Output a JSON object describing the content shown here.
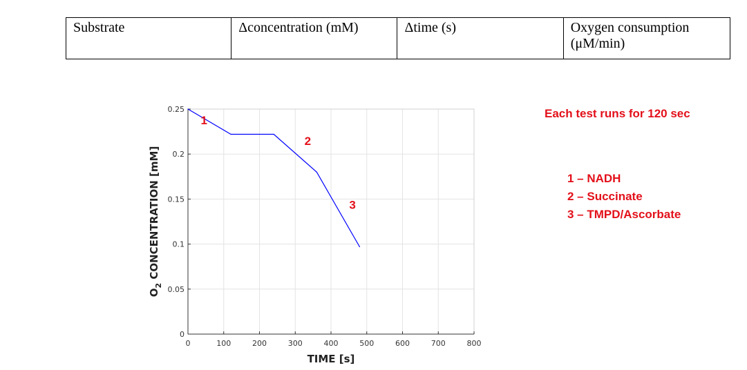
{
  "table": {
    "headers": [
      "Substrate",
      "Δconcentration (mM)",
      "Δtime (s)",
      "Oxygen consumption",
      "(μM/min)"
    ]
  },
  "chart_data": {
    "type": "line",
    "x": [
      0,
      120,
      240,
      360,
      480
    ],
    "series": [
      {
        "values": [
          0.25,
          0.222,
          0.222,
          0.18,
          0.097
        ],
        "color": "#0000ff"
      }
    ],
    "xlabel": "TIME [s]",
    "ylabel": "O2 CONCENTRATION [mM]",
    "xlim": [
      0,
      800
    ],
    "ylim": [
      0,
      0.25
    ],
    "xticks": [
      0,
      100,
      200,
      300,
      400,
      500,
      600,
      700,
      800
    ],
    "yticks": [
      0,
      0.05,
      0.1,
      0.15,
      0.2,
      0.25
    ],
    "ytick_labels": [
      "0",
      "0.05",
      "0.1",
      "0.15",
      "0.2",
      "0.25"
    ],
    "grid": true,
    "annotations": [
      {
        "text": "1",
        "x": 45,
        "y": 0.233
      },
      {
        "text": "2",
        "x": 335,
        "y": 0.21
      },
      {
        "text": "3",
        "x": 460,
        "y": 0.139
      }
    ],
    "annotation_color": "#e3101a"
  },
  "notes": {
    "run_info": "Each test runs for 120 sec",
    "legend": [
      "1 – NADH",
      "2 – Succinate",
      "3 – TMPD/Ascorbate"
    ]
  }
}
